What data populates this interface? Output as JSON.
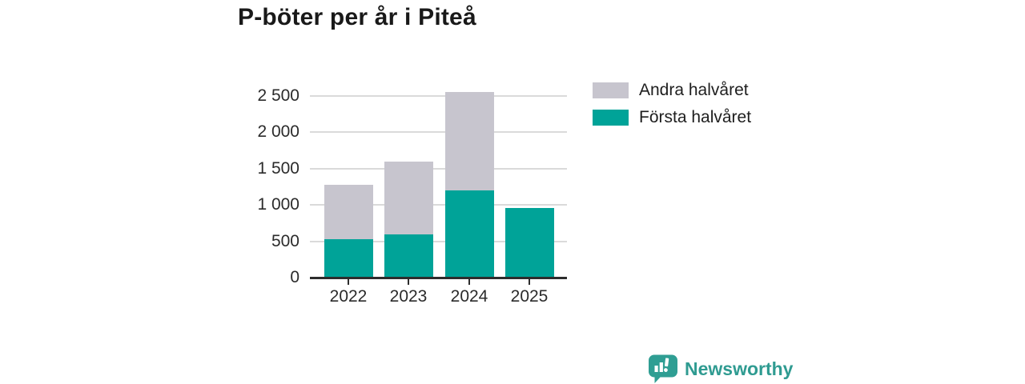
{
  "title": "P-böter per år i Piteå",
  "legend": [
    {
      "label": "Andra halvåret",
      "color": "#c7c5ce"
    },
    {
      "label": "Första halvåret",
      "color": "#00a398"
    }
  ],
  "branding": {
    "name": "Newsworthy",
    "color": "#2f9b91",
    "logo": "newsworthy-speech-bubble-bar-chart-icon"
  },
  "colors": {
    "first_half": "#00a398",
    "second_half": "#c7c5ce",
    "axis": "#2d2d2d",
    "gridline": "#dadada",
    "title_text": "#191919"
  },
  "chart_data": {
    "type": "bar",
    "stacked": true,
    "title": "P-böter per år i Piteå",
    "categories": [
      "2022",
      "2023",
      "2024",
      "2025"
    ],
    "series": [
      {
        "name": "Första halvåret",
        "color": "#00a398",
        "values": [
          530,
          590,
          1200,
          960
        ]
      },
      {
        "name": "Andra halvåret",
        "color": "#c7c5ce",
        "values": [
          750,
          1010,
          1350,
          0
        ]
      }
    ],
    "totals": [
      1280,
      1600,
      2550,
      960
    ],
    "xlabel": "",
    "ylabel": "",
    "ylim": [
      0,
      2500
    ],
    "yticks": [
      0,
      500,
      1000,
      1500,
      2000,
      2500
    ],
    "ytick_labels": [
      "0",
      "500",
      "1 000",
      "1 500",
      "2 000",
      "2 500"
    ],
    "grid": true,
    "legend_position": "top-right"
  }
}
